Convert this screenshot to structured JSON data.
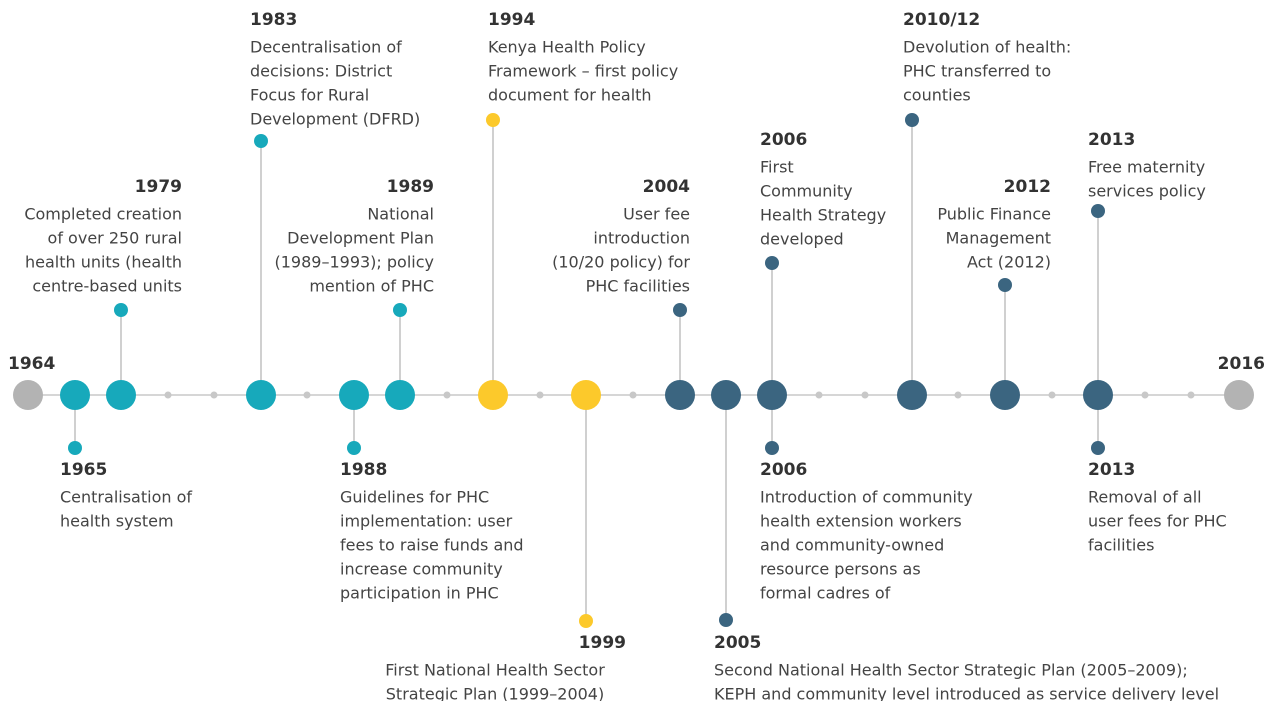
{
  "timeline": {
    "start": "1964",
    "end": "2016",
    "events": [
      {
        "year": "1965",
        "text": [
          "Centralisation of",
          "health system"
        ]
      },
      {
        "year": "1979",
        "text": [
          "Completed creation",
          "of over 250 rural",
          "health units (health",
          "centre-based units"
        ]
      },
      {
        "year": "1983",
        "text": [
          "Decentralisation of",
          "decisions: District",
          "Focus for Rural",
          "Development (DFRD)"
        ]
      },
      {
        "year": "1988",
        "text": [
          "Guidelines for PHC",
          "implementation: user",
          "fees to raise funds and",
          "increase community",
          "participation in PHC"
        ]
      },
      {
        "year": "1989",
        "text": [
          "National",
          "Development Plan",
          "(1989–1993); policy",
          "mention of PHC"
        ]
      },
      {
        "year": "1994",
        "text": [
          "Kenya Health Policy",
          "Framework – first policy",
          "document for health"
        ]
      },
      {
        "year": "1999",
        "text": [
          "First National Health Sector",
          "Strategic Plan (1999–2004)"
        ]
      },
      {
        "year": "2004",
        "text": [
          "User fee",
          "introduction",
          "(10/20 policy) for",
          "PHC facilities"
        ]
      },
      {
        "year": "2005",
        "text": [
          "Second National Health Sector Strategic Plan (2005–2009);",
          "KEPH and community level introduced as service delivery level"
        ]
      },
      {
        "year": "2006",
        "text": [
          "First",
          "Community",
          "Health Strategy",
          "developed"
        ]
      },
      {
        "year": "2006",
        "text": [
          "Introduction of community",
          "health extension workers",
          "and community-owned",
          "resource persons as",
          "formal cadres of"
        ]
      },
      {
        "year": "2010/12",
        "text": [
          "Devolution of health:",
          "PHC transferred to",
          "counties"
        ]
      },
      {
        "year": "2012",
        "text": [
          "Public Finance",
          "Management",
          "Act (2012)"
        ]
      },
      {
        "year": "2013",
        "text": [
          "Free maternity",
          "services policy"
        ]
      },
      {
        "year": "2013",
        "text": [
          "Removal of all",
          "user fees for PHC",
          "facilities"
        ]
      }
    ]
  }
}
